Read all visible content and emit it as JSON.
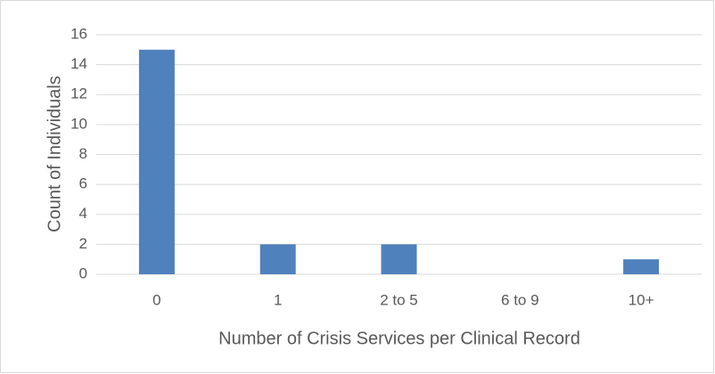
{
  "chart_data": {
    "type": "bar",
    "categories": [
      "0",
      "1",
      "2 to 5",
      "6 to 9",
      "10+"
    ],
    "values": [
      15,
      2,
      2,
      0,
      1
    ],
    "color": "#4f81bd",
    "xlabel": "Number of Crisis Services per Clinical Record",
    "ylabel": "Count of Individuals",
    "ylim": [
      0,
      16
    ],
    "yticks": [
      0,
      2,
      4,
      6,
      8,
      10,
      12,
      14,
      16
    ],
    "grid": true
  }
}
